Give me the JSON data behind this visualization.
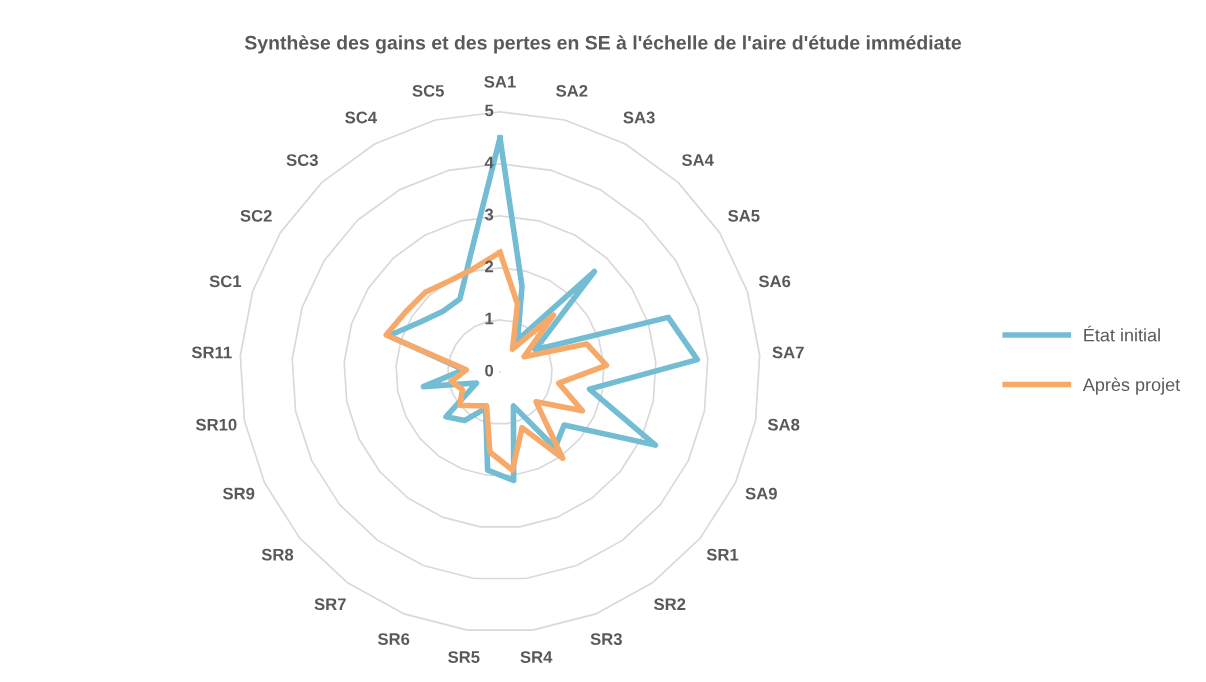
{
  "chart_data": {
    "type": "radar",
    "title": "Synthèse des gains et des pertes en SE à l'échelle de l'aire d'étude immédiate",
    "categories": [
      "SA1",
      "SA2",
      "SA3",
      "SA4",
      "SA5",
      "SA6",
      "SA7",
      "SA8",
      "SA9",
      "SR1",
      "SR2",
      "SR3",
      "SR4",
      "SR5",
      "SR6",
      "SR7",
      "SR8",
      "SR9",
      "SR10",
      "SR11",
      "SC1",
      "SC2",
      "SC3",
      "SC4",
      "SC5"
    ],
    "series": [
      {
        "name": "État initial",
        "color": "#72bcd4",
        "values": [
          4.5,
          1.7,
          0.7,
          2.65,
          0.8,
          3.4,
          3.8,
          1.75,
          3.3,
          1.6,
          1.8,
          0.7,
          2.1,
          1.9,
          0.75,
          1.15,
          1.35,
          0.5,
          1.5,
          0.7,
          2.25,
          1.8,
          1.6,
          1.6,
          2.3
        ]
      },
      {
        "name": "Après projet",
        "color": "#f7a96a",
        "values": [
          2.3,
          1.35,
          0.5,
          1.5,
          0.55,
          1.75,
          2.05,
          1.15,
          1.75,
          0.9,
          2.05,
          1.15,
          1.9,
          1.55,
          0.7,
          0.8,
          1.0,
          0.8,
          0.95,
          0.65,
          2.3,
          2.15,
          2.1,
          2.0,
          2.05
        ]
      }
    ],
    "ylim": [
      0,
      5
    ],
    "yticks": [
      0,
      1,
      2,
      3,
      4,
      5
    ],
    "grid": true,
    "legend": "right"
  }
}
